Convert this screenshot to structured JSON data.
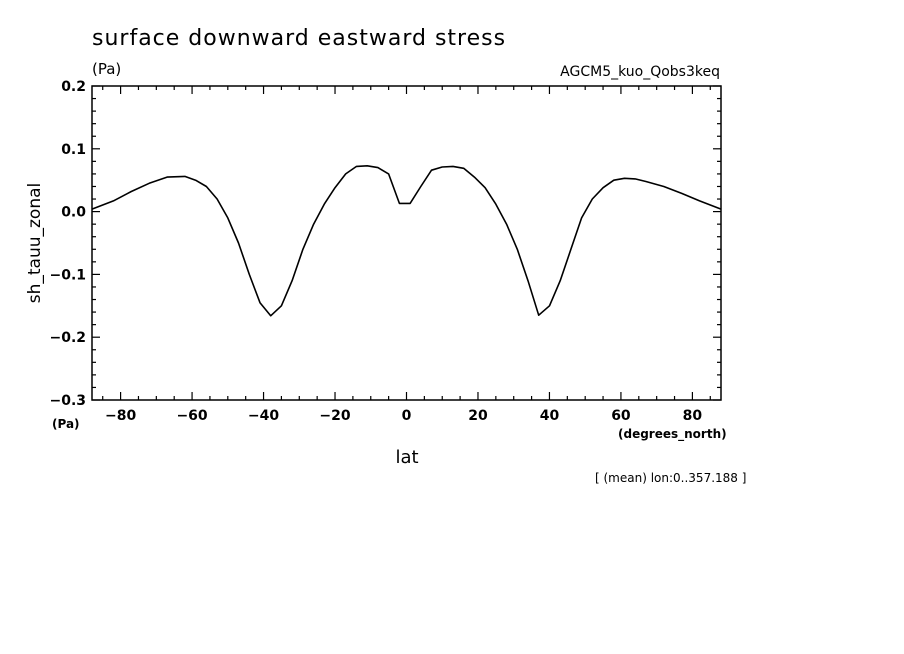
{
  "chart_data": {
    "type": "line",
    "title": "surface downward eastward stress",
    "units_top": "(Pa)",
    "run_label": "AGCM5_kuo_Qobs3keq",
    "ylabel": "sh_tauu_zonal",
    "yunits": "(Pa)",
    "xlabel": "lat",
    "xunits": "(degrees_north)",
    "footnote": "[ (mean) lon:0..357.188 ]",
    "xlim": [
      -88,
      88
    ],
    "ylim": [
      -0.3,
      0.2
    ],
    "x_ticks": [
      -80,
      -60,
      -40,
      -20,
      0,
      20,
      40,
      60,
      80
    ],
    "x_tick_labels": [
      "−80",
      "−60",
      "−40",
      "−20",
      "0",
      "20",
      "40",
      "60",
      "80"
    ],
    "y_ticks": [
      0.2,
      0.1,
      0.0,
      -0.1,
      -0.2,
      -0.3
    ],
    "y_tick_labels": [
      "0.2",
      "0.1",
      "0.0",
      "−0.1",
      "−0.2",
      "−0.3"
    ],
    "grid": false,
    "series": [
      {
        "x": [
          -88,
          -82,
          -77,
          -72,
          -67,
          -62,
          -59,
          -56,
          -53,
          -50,
          -47,
          -44,
          -41,
          -38,
          -35,
          -32,
          -29,
          -26,
          -23,
          -20,
          -17,
          -14,
          -11,
          -8,
          -5,
          -2,
          1,
          4,
          7,
          10,
          13,
          16,
          19,
          22,
          25,
          28,
          31,
          34,
          37,
          40,
          43,
          46,
          49,
          52,
          55,
          58,
          61,
          64,
          67,
          72,
          77,
          82,
          88
        ],
        "y": [
          0.004,
          0.017,
          0.032,
          0.045,
          0.055,
          0.056,
          0.05,
          0.04,
          0.02,
          -0.01,
          -0.05,
          -0.1,
          -0.145,
          -0.166,
          -0.15,
          -0.11,
          -0.06,
          -0.02,
          0.012,
          0.038,
          0.06,
          0.072,
          0.073,
          0.07,
          0.06,
          0.013,
          0.013,
          0.04,
          0.066,
          0.071,
          0.072,
          0.069,
          0.055,
          0.038,
          0.012,
          -0.02,
          -0.06,
          -0.11,
          -0.165,
          -0.15,
          -0.11,
          -0.06,
          -0.01,
          0.02,
          0.038,
          0.05,
          0.053,
          0.052,
          0.048,
          0.04,
          0.029,
          0.017,
          0.004
        ]
      }
    ]
  }
}
